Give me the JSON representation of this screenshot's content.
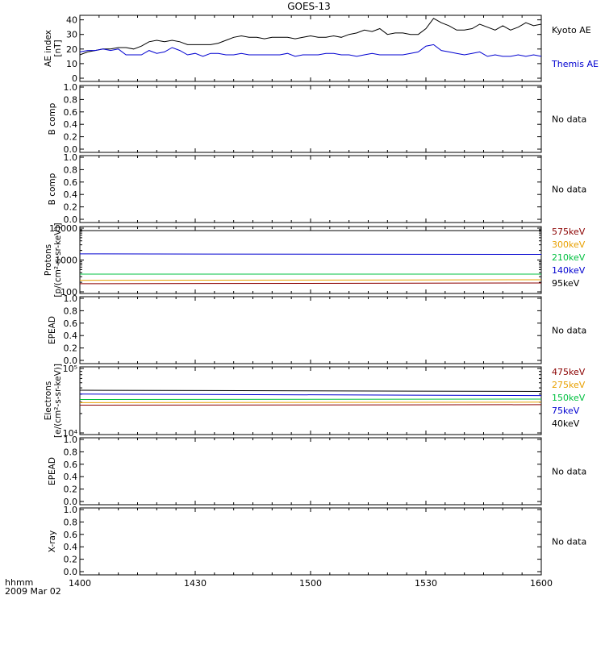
{
  "title": "GOES-13",
  "xaxis": {
    "label_top": "hhmm",
    "label_bottom": "2009 Mar 02",
    "range": [
      0,
      120
    ],
    "ticks": [
      {
        "v": 0,
        "label": "1400"
      },
      {
        "v": 30,
        "label": "1430"
      },
      {
        "v": 60,
        "label": "1500"
      },
      {
        "v": 90,
        "label": "1530"
      },
      {
        "v": 120,
        "label": "1600"
      }
    ]
  },
  "chart_data": [
    {
      "type": "line",
      "ylabel": [
        "AE index",
        "[nT]"
      ],
      "ylim": [
        0,
        42
      ],
      "yticks": [
        "0",
        "10",
        "20",
        "30",
        "40"
      ],
      "ytick_values": [
        0,
        10,
        20,
        30,
        40
      ],
      "log": false,
      "series": [
        {
          "name": "Kyoto AE",
          "color": "#000000",
          "x": [
            0,
            2,
            4,
            6,
            8,
            10,
            12,
            14,
            16,
            18,
            20,
            22,
            24,
            26,
            28,
            30,
            32,
            34,
            36,
            38,
            40,
            42,
            44,
            46,
            48,
            50,
            52,
            54,
            56,
            58,
            60,
            62,
            64,
            66,
            68,
            70,
            72,
            74,
            76,
            78,
            80,
            82,
            84,
            86,
            88,
            90,
            92,
            94,
            96,
            98,
            100,
            102,
            104,
            106,
            108,
            110,
            112,
            114,
            116,
            118,
            120
          ],
          "y": [
            16,
            18,
            19,
            20,
            20,
            21,
            21,
            20,
            22,
            25,
            26,
            25,
            26,
            25,
            23,
            23,
            23,
            23,
            24,
            26,
            28,
            29,
            28,
            28,
            27,
            28,
            28,
            28,
            27,
            28,
            29,
            28,
            28,
            29,
            28,
            30,
            31,
            33,
            32,
            34,
            30,
            31,
            31,
            30,
            30,
            34,
            41,
            38,
            36,
            33,
            33,
            34,
            37,
            35,
            33,
            36,
            33,
            35,
            38,
            36,
            37
          ]
        },
        {
          "name": "Themis AE",
          "color": "#0000d0",
          "x": [
            0,
            2,
            4,
            6,
            8,
            10,
            12,
            14,
            16,
            18,
            20,
            22,
            24,
            26,
            28,
            30,
            32,
            34,
            36,
            38,
            40,
            42,
            44,
            46,
            48,
            50,
            52,
            54,
            56,
            58,
            60,
            62,
            64,
            66,
            68,
            70,
            72,
            74,
            76,
            78,
            80,
            82,
            84,
            86,
            88,
            90,
            92,
            94,
            96,
            98,
            100,
            102,
            104,
            106,
            108,
            110,
            112,
            114,
            116,
            118,
            120
          ],
          "y": [
            18,
            19,
            19,
            20,
            19,
            20,
            16,
            16,
            16,
            19,
            17,
            18,
            21,
            19,
            16,
            17,
            15,
            17,
            17,
            16,
            16,
            17,
            16,
            16,
            16,
            16,
            16,
            17,
            15,
            16,
            16,
            16,
            17,
            17,
            16,
            16,
            15,
            16,
            17,
            16,
            16,
            16,
            16,
            17,
            18,
            22,
            23,
            19,
            18,
            17,
            16,
            17,
            18,
            15,
            16,
            15,
            15,
            16,
            15,
            16,
            15
          ]
        }
      ]
    },
    {
      "type": "line",
      "ylabel": [
        "B comp"
      ],
      "ylim": [
        0,
        1
      ],
      "yticks": [
        "0.0",
        "0.2",
        "0.4",
        "0.6",
        "0.8",
        "1.0"
      ],
      "ytick_values": [
        0,
        0.2,
        0.4,
        0.6,
        0.8,
        1.0
      ],
      "log": false,
      "nodata": "No data",
      "series": []
    },
    {
      "type": "line",
      "ylabel": [
        "B comp"
      ],
      "ylim": [
        0,
        1
      ],
      "yticks": [
        "0.0",
        "0.2",
        "0.4",
        "0.6",
        "0.8",
        "1.0"
      ],
      "ytick_values": [
        0,
        0.2,
        0.4,
        0.6,
        0.8,
        1.0
      ],
      "log": false,
      "nodata": "No data",
      "series": []
    },
    {
      "type": "line",
      "ylabel": [
        "Protons",
        "[p/(cm²-s-sr-keV)]"
      ],
      "ylim": [
        100,
        10000
      ],
      "yticks": [
        "100",
        "1000",
        "10000"
      ],
      "ytick_values": [
        100,
        1000,
        10000
      ],
      "log": true,
      "series": [
        {
          "name": "575keV",
          "color": "#8b0000",
          "x": [
            0,
            120
          ],
          "y": [
            180,
            190
          ]
        },
        {
          "name": "300keV",
          "color": "#e8a000",
          "x": [
            0,
            120
          ],
          "y": [
            230,
            240
          ]
        },
        {
          "name": "210keV",
          "color": "#00c040",
          "x": [
            0,
            120
          ],
          "y": [
            360,
            360
          ]
        },
        {
          "name": "140keV",
          "color": "#0000d0",
          "x": [
            0,
            120
          ],
          "y": [
            1560,
            1500
          ]
        },
        {
          "name": "95keV",
          "color": "#000000",
          "x": [
            0,
            120
          ],
          "y": [
            8400,
            8400
          ]
        }
      ]
    },
    {
      "type": "line",
      "ylabel": [
        "EPEAD"
      ],
      "ylim": [
        0,
        1
      ],
      "yticks": [
        "0.0",
        "0.2",
        "0.4",
        "0.6",
        "0.8",
        "1.0"
      ],
      "ytick_values": [
        0,
        0.2,
        0.4,
        0.6,
        0.8,
        1.0
      ],
      "log": false,
      "nodata": "No data",
      "series": []
    },
    {
      "type": "line",
      "ylabel": [
        "Electrons",
        "[e/(cm²-s-sr-keV)]"
      ],
      "ylim": [
        10000,
        100000
      ],
      "yticks": [
        "10⁴",
        "10⁵"
      ],
      "ytick_values": [
        10000,
        100000
      ],
      "log": true,
      "series": [
        {
          "name": "475keV",
          "color": "#8b0000",
          "x": [
            0,
            120
          ],
          "y": [
            27000,
            27500
          ]
        },
        {
          "name": "275keV",
          "color": "#e8a000",
          "x": [
            0,
            120
          ],
          "y": [
            29500,
            30000
          ]
        },
        {
          "name": "150keV",
          "color": "#00c040",
          "x": [
            0,
            120
          ],
          "y": [
            33000,
            33500
          ]
        },
        {
          "name": "75keV",
          "color": "#0000d0",
          "x": [
            0,
            120
          ],
          "y": [
            40000,
            38000
          ]
        },
        {
          "name": "40keV",
          "color": "#000000",
          "x": [
            0,
            120
          ],
          "y": [
            46000,
            44000
          ]
        }
      ]
    },
    {
      "type": "line",
      "ylabel": [
        "EPEAD"
      ],
      "ylim": [
        0,
        1
      ],
      "yticks": [
        "0.0",
        "0.2",
        "0.4",
        "0.6",
        "0.8",
        "1.0"
      ],
      "ytick_values": [
        0,
        0.2,
        0.4,
        0.6,
        0.8,
        1.0
      ],
      "log": false,
      "nodata": "No data",
      "series": []
    },
    {
      "type": "line",
      "ylabel": [
        "X-ray"
      ],
      "ylim": [
        0,
        1
      ],
      "yticks": [
        "0.0",
        "0.2",
        "0.4",
        "0.6",
        "0.8",
        "1.0"
      ],
      "ytick_values": [
        0,
        0.2,
        0.4,
        0.6,
        0.8,
        1.0
      ],
      "log": false,
      "nodata": "No data",
      "series": []
    }
  ]
}
